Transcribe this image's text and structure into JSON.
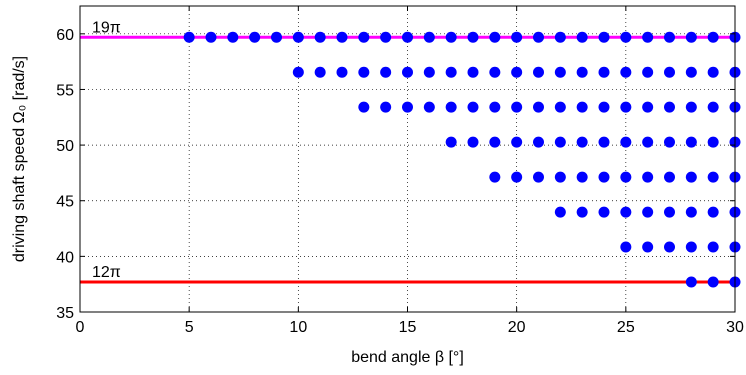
{
  "chart_data": {
    "type": "scatter",
    "title": "",
    "xlabel": "bend angle β [°]",
    "ylabel": "driving shaft speed Ω₀ [rad/s]",
    "xlim": [
      0,
      30
    ],
    "ylim": [
      35,
      62.5
    ],
    "x_ticks": [
      0,
      5,
      10,
      15,
      20,
      25,
      30
    ],
    "y_ticks": [
      35,
      40,
      45,
      50,
      55,
      60
    ],
    "grid": true,
    "legend": "none",
    "marker_color": "#0000ff",
    "reference_lines": [
      {
        "label": "19π",
        "y": 59.69,
        "color": "#ff00ff"
      },
      {
        "label": "12π",
        "y": 37.7,
        "color": "#ff0000"
      }
    ],
    "rows": [
      {
        "y": 59.69,
        "x": [
          5,
          6,
          7,
          8,
          9,
          10,
          11,
          12,
          13,
          14,
          15,
          16,
          17,
          18,
          19,
          20,
          21,
          22,
          23,
          24,
          25,
          26,
          27,
          28,
          29,
          30
        ]
      },
      {
        "y": 56.55,
        "x": [
          10,
          11,
          12,
          13,
          14,
          15,
          16,
          17,
          18,
          19,
          20,
          21,
          22,
          23,
          24,
          25,
          26,
          27,
          28,
          29,
          30
        ]
      },
      {
        "y": 53.41,
        "x": [
          13,
          14,
          15,
          16,
          17,
          18,
          19,
          20,
          21,
          22,
          23,
          24,
          25,
          26,
          27,
          28,
          29,
          30
        ]
      },
      {
        "y": 50.27,
        "x": [
          17,
          18,
          19,
          20,
          21,
          22,
          23,
          24,
          25,
          26,
          27,
          28,
          29,
          30
        ]
      },
      {
        "y": 47.12,
        "x": [
          19,
          20,
          21,
          22,
          23,
          24,
          25,
          26,
          27,
          28,
          29,
          30
        ]
      },
      {
        "y": 43.98,
        "x": [
          22,
          23,
          24,
          25,
          26,
          27,
          28,
          29,
          30
        ]
      },
      {
        "y": 40.84,
        "x": [
          25,
          26,
          27,
          28,
          29,
          30
        ]
      },
      {
        "y": 37.7,
        "x": [
          28,
          29,
          30
        ]
      }
    ]
  }
}
